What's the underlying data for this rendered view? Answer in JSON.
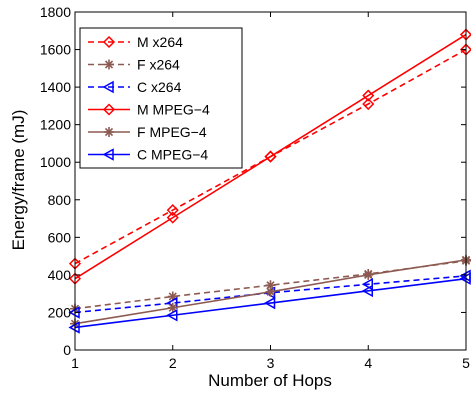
{
  "chart_data": {
    "type": "line",
    "xlabel": "Number of Hops",
    "ylabel": "Energy/frame (mJ)",
    "x": [
      1,
      2,
      3,
      4,
      5
    ],
    "xlim": [
      1,
      5
    ],
    "ylim": [
      0,
      1800
    ],
    "xticks": [
      "1",
      "2",
      "3",
      "4",
      "5"
    ],
    "yticks": [
      "0",
      "200",
      "400",
      "600",
      "800",
      "1000",
      "1200",
      "1400",
      "1600",
      "1800"
    ],
    "grid": false,
    "legend_position": "top-left",
    "series": [
      {
        "name": "M x264",
        "values": [
          460,
          745,
          1030,
          1310,
          1600
        ],
        "color": "#ff0000",
        "dash": "dashed",
        "marker": "diamond"
      },
      {
        "name": "F x264",
        "values": [
          220,
          285,
          345,
          405,
          475
        ],
        "color": "#8c5a50",
        "dash": "dashed",
        "marker": "star"
      },
      {
        "name": "C x264",
        "values": [
          200,
          250,
          305,
          350,
          395
        ],
        "color": "#0000ff",
        "dash": "dashed",
        "marker": "triangle-left"
      },
      {
        "name": "M MPEG−4",
        "values": [
          380,
          705,
          1030,
          1355,
          1680
        ],
        "color": "#ff0000",
        "dash": "solid",
        "marker": "diamond"
      },
      {
        "name": "F MPEG−4",
        "values": [
          140,
          225,
          310,
          400,
          480
        ],
        "color": "#8c5a50",
        "dash": "solid",
        "marker": "star"
      },
      {
        "name": "C MPEG−4",
        "values": [
          120,
          185,
          250,
          315,
          380
        ],
        "color": "#0000ff",
        "dash": "solid",
        "marker": "triangle-left"
      }
    ]
  }
}
